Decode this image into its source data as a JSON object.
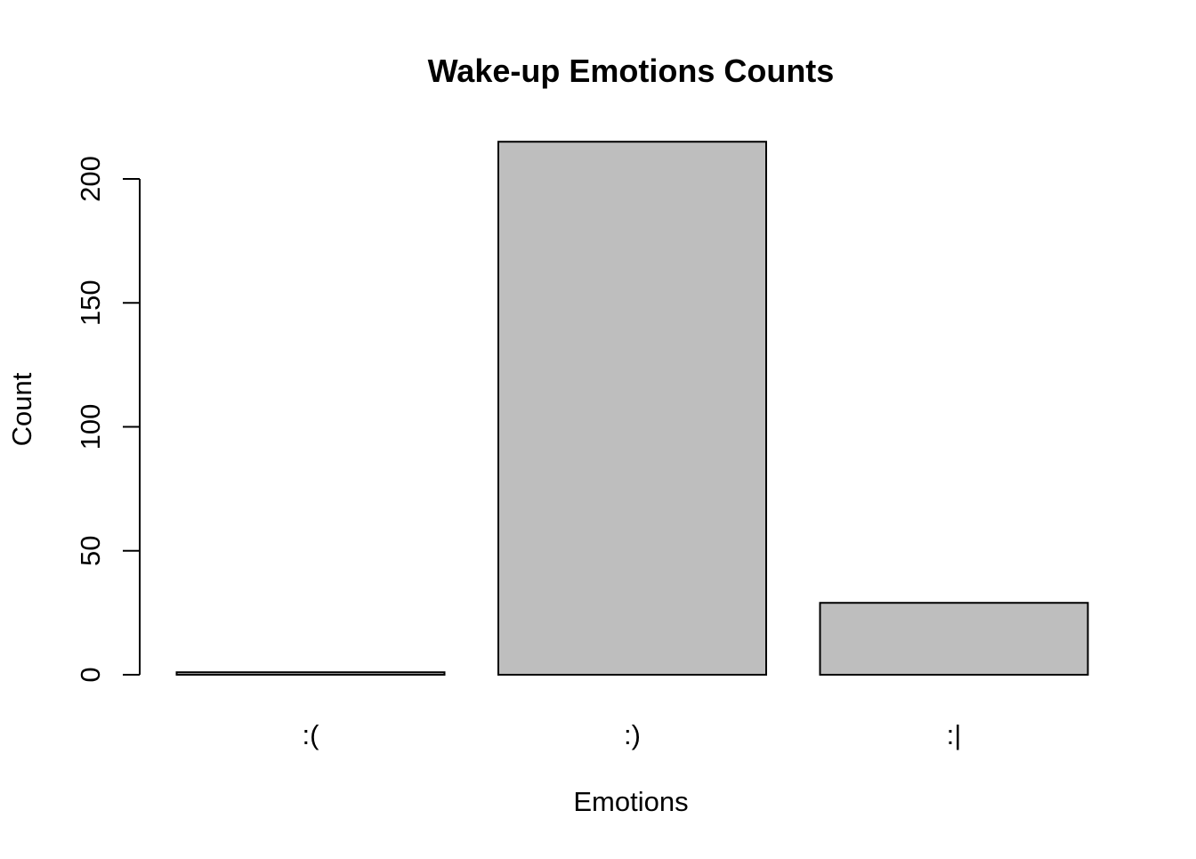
{
  "chart_data": {
    "type": "bar",
    "title": "Wake-up Emotions Counts",
    "xlabel": "Emotions",
    "ylabel": "Count",
    "categories": [
      ":(",
      ":)",
      ":|"
    ],
    "values": [
      1,
      215,
      29
    ],
    "ylim": [
      0,
      215
    ],
    "yticks": [
      0,
      50,
      100,
      150,
      200
    ],
    "grid": false,
    "legend": "none",
    "bar_fill": "#bebebe",
    "bar_stroke": "#000000"
  }
}
